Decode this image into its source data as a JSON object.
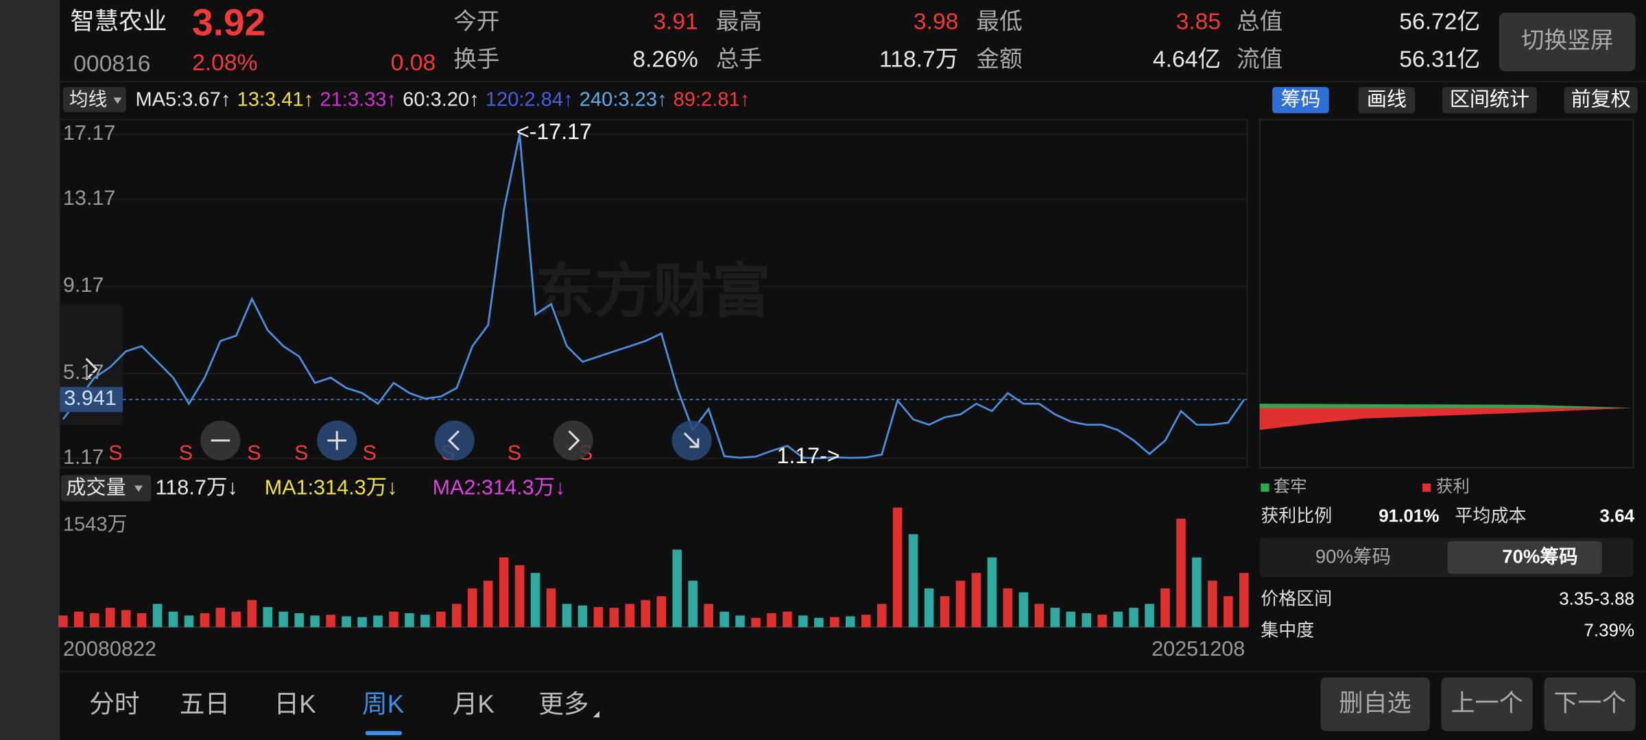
{
  "header": {
    "name": "智慧农业",
    "price": "3.92",
    "code": "000816",
    "change_pct": "2.08%",
    "change": "0.08",
    "switch_button": "切换竖屏"
  },
  "stats": [
    {
      "label": "今开",
      "value": "3.91",
      "color": "#f23a3a"
    },
    {
      "label": "最高",
      "value": "3.98",
      "color": "#f23a3a"
    },
    {
      "label": "最低",
      "value": "3.85",
      "color": "#f23a3a"
    },
    {
      "label": "总值",
      "value": "56.72亿",
      "color": "#e8e8e8"
    },
    {
      "label": "换手",
      "value": "8.26%",
      "color": "#e8e8e8"
    },
    {
      "label": "总手",
      "value": "118.7万",
      "color": "#e8e8e8"
    },
    {
      "label": "金额",
      "value": "4.64亿",
      "color": "#e8e8e8"
    },
    {
      "label": "流值",
      "value": "56.31亿",
      "color": "#e8e8e8"
    }
  ],
  "ma_bar": {
    "selector": "均线",
    "items": [
      {
        "text": "MA5:3.67↑",
        "color": "#e8e8e8"
      },
      {
        "text": "13:3.41↑",
        "color": "#f0e040"
      },
      {
        "text": "21:3.33↑",
        "color": "#d030d0"
      },
      {
        "text": "60:3.20↑",
        "color": "#e8e8e8"
      },
      {
        "text": "120:2.84↑",
        "color": "#4a5ee0"
      },
      {
        "text": "240:3.23↑",
        "color": "#5ab0f0"
      },
      {
        "text": "89:2.81↑",
        "color": "#f23a3a"
      }
    ]
  },
  "tools": [
    "筹码",
    "画线",
    "区间统计",
    "前复权"
  ],
  "price_chart": {
    "watermark": "东方财富",
    "yticks": [
      17.17,
      13.17,
      9.17,
      5.17,
      1.17
    ],
    "current_price": 3.941,
    "high_label": "<-17.17",
    "low_label": "1.17->",
    "signals": [
      "S",
      "S",
      "S",
      "S",
      "S",
      "S",
      "S",
      "S"
    ],
    "color": "#4a8fe0",
    "values": [
      3.0,
      3.98,
      4.97,
      5.46,
      6.18,
      6.42,
      5.7,
      4.97,
      3.74,
      4.97,
      6.66,
      6.9,
      8.59,
      7.15,
      6.42,
      5.94,
      4.72,
      4.97,
      4.48,
      4.24,
      3.74,
      4.72,
      4.24,
      3.98,
      4.08,
      4.48,
      6.42,
      7.39,
      12.69,
      17.17,
      7.87,
      8.35,
      6.42,
      5.7,
      5.94,
      6.18,
      6.42,
      6.66,
      7.0,
      4.48,
      2.5,
      3.49,
      1.27,
      1.2,
      1.25,
      1.52,
      1.76,
      1.2,
      1.17,
      1.22,
      1.19,
      1.21,
      1.35,
      3.89,
      3.0,
      2.75,
      3.1,
      3.24,
      3.74,
      3.39,
      4.24,
      3.74,
      3.74,
      3.24,
      2.9,
      2.75,
      2.75,
      2.5,
      2.01,
      1.37,
      2.01,
      3.39,
      2.75,
      2.75,
      2.85,
      3.92
    ]
  },
  "volume_bar": {
    "selector": "成交量",
    "volume": "118.7万↓",
    "ma1": "MA1:314.3万↓",
    "ma2": "MA2:314.3万↓"
  },
  "volume_chart": {
    "ymax_label": "1543万",
    "ylim": [
      0,
      1543
    ],
    "values": [
      150,
      200,
      180,
      250,
      220,
      180,
      300,
      200,
      150,
      180,
      250,
      200,
      350,
      260,
      200,
      180,
      150,
      160,
      140,
      130,
      150,
      200,
      180,
      160,
      200,
      300,
      500,
      600,
      900,
      800,
      700,
      500,
      300,
      280,
      260,
      250,
      300,
      350,
      400,
      1000,
      600,
      300,
      200,
      150,
      120,
      180,
      200,
      150,
      120,
      130,
      140,
      160,
      300,
      1543,
      1200,
      500,
      400,
      600,
      700,
      900,
      500,
      450,
      300,
      250,
      200,
      180,
      160,
      200,
      250,
      300,
      500,
      1400,
      900,
      600,
      400,
      700
    ]
  },
  "dates": [
    "20080822",
    "20251208"
  ],
  "chips": {
    "legend": [
      "套牢",
      "获利"
    ],
    "rows": [
      {
        "label": "获利比例",
        "value": "91.01%"
      },
      {
        "label": "平均成本",
        "value": "3.64"
      }
    ],
    "tabs": [
      "90%筹码",
      "70%筹码"
    ],
    "range_label": "价格区间",
    "range": "3.35-3.88",
    "concentration_label": "集中度",
    "concentration": "7.39%"
  },
  "tabs": [
    "分时",
    "五日",
    "日K",
    "周K",
    "月K",
    "更多"
  ],
  "active_tab": 3,
  "buttons": [
    "删自选",
    "上一个",
    "下一个"
  ]
}
